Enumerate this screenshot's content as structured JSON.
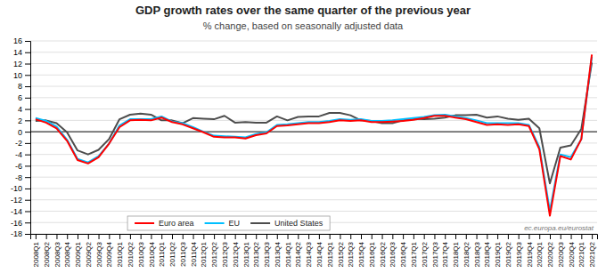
{
  "chart_data": {
    "type": "line",
    "title": "GDP growth rates over the same quarter of the previous year",
    "subtitle": "% change,  based on seasonally adjusted data",
    "annotations": [
      "ec.europa.eu/eurostat"
    ],
    "categories": [
      "2008Q1",
      "2008Q2",
      "2008Q3",
      "2008Q4",
      "2009Q1",
      "2009Q2",
      "2009Q3",
      "2009Q4",
      "2010Q1",
      "2010Q2",
      "2010Q3",
      "2010Q4",
      "2011Q1",
      "2011Q2",
      "2011Q3",
      "2011Q4",
      "2012Q1",
      "2012Q2",
      "2012Q3",
      "2012Q4",
      "2013Q1",
      "2013Q2",
      "2013Q3",
      "2013Q4",
      "2014Q1",
      "2014Q2",
      "2014Q3",
      "2014Q4",
      "2015Q1",
      "2015Q2",
      "2015Q3",
      "2015Q4",
      "2016Q1",
      "2016Q2",
      "2016Q3",
      "2016Q4",
      "2017Q1",
      "2017Q2",
      "2017Q3",
      "2017Q4",
      "2018Q1",
      "2018Q2",
      "2018Q3",
      "2018Q4",
      "2019Q1",
      "2019Q2",
      "2019Q3",
      "2019Q4",
      "2020Q1",
      "2020Q2",
      "2020Q3",
      "2020Q4",
      "2021Q1",
      "2021Q2"
    ],
    "series": [
      {
        "name": "Euro area",
        "color": "#FF0000",
        "values": [
          2.2,
          1.6,
          0.6,
          -1.6,
          -5.0,
          -5.6,
          -4.5,
          -2.1,
          0.8,
          2.0,
          2.1,
          2.0,
          2.5,
          1.7,
          1.3,
          0.6,
          -0.1,
          -0.9,
          -1.0,
          -1.0,
          -1.2,
          -0.6,
          -0.3,
          1.0,
          1.1,
          1.3,
          1.5,
          1.5,
          1.7,
          2.0,
          1.9,
          2.0,
          1.7,
          1.7,
          1.8,
          1.9,
          2.1,
          2.4,
          2.8,
          2.8,
          2.5,
          2.2,
          1.7,
          1.2,
          1.3,
          1.2,
          1.3,
          1.0,
          -3.1,
          -14.8,
          -4.3,
          -4.9,
          -1.3,
          13.6
        ]
      },
      {
        "name": "EU",
        "color": "#00BFFF",
        "values": [
          2.4,
          1.9,
          0.9,
          -1.4,
          -4.8,
          -5.4,
          -4.3,
          -2.1,
          1.1,
          2.2,
          2.2,
          2.2,
          2.7,
          1.8,
          1.5,
          0.8,
          0.0,
          -0.7,
          -0.8,
          -0.9,
          -1.0,
          -0.4,
          -0.1,
          1.2,
          1.3,
          1.5,
          1.7,
          1.7,
          1.9,
          2.2,
          2.1,
          2.2,
          1.9,
          1.9,
          2.0,
          2.2,
          2.4,
          2.6,
          2.9,
          3.0,
          2.7,
          2.4,
          2.0,
          1.5,
          1.5,
          1.5,
          1.5,
          1.2,
          -2.7,
          -13.9,
          -4.0,
          -4.5,
          -1.3,
          13.2
        ]
      },
      {
        "name": "United States",
        "color": "#4d4d4d",
        "values": [
          1.9,
          2.0,
          1.5,
          -0.1,
          -3.3,
          -4.0,
          -3.2,
          -1.3,
          2.2,
          3.0,
          3.2,
          3.0,
          2.0,
          2.0,
          1.5,
          2.4,
          2.3,
          2.2,
          2.8,
          1.6,
          1.7,
          1.6,
          1.6,
          2.7,
          2.0,
          2.6,
          2.7,
          2.7,
          3.3,
          3.3,
          2.9,
          2.0,
          1.9,
          1.5,
          1.5,
          2.0,
          2.3,
          2.2,
          2.3,
          2.5,
          2.9,
          2.9,
          3.0,
          2.5,
          2.7,
          2.3,
          2.1,
          2.3,
          0.6,
          -9.1,
          -2.8,
          -2.4,
          0.5,
          12.2
        ]
      }
    ],
    "ylim": [
      -18,
      16
    ],
    "yticks": [
      -18,
      -16,
      -14,
      -12,
      -10,
      -8,
      -6,
      -4,
      -2,
      0,
      2,
      4,
      6,
      8,
      10,
      12,
      14,
      16
    ],
    "grid": true,
    "legend": "bottom"
  }
}
